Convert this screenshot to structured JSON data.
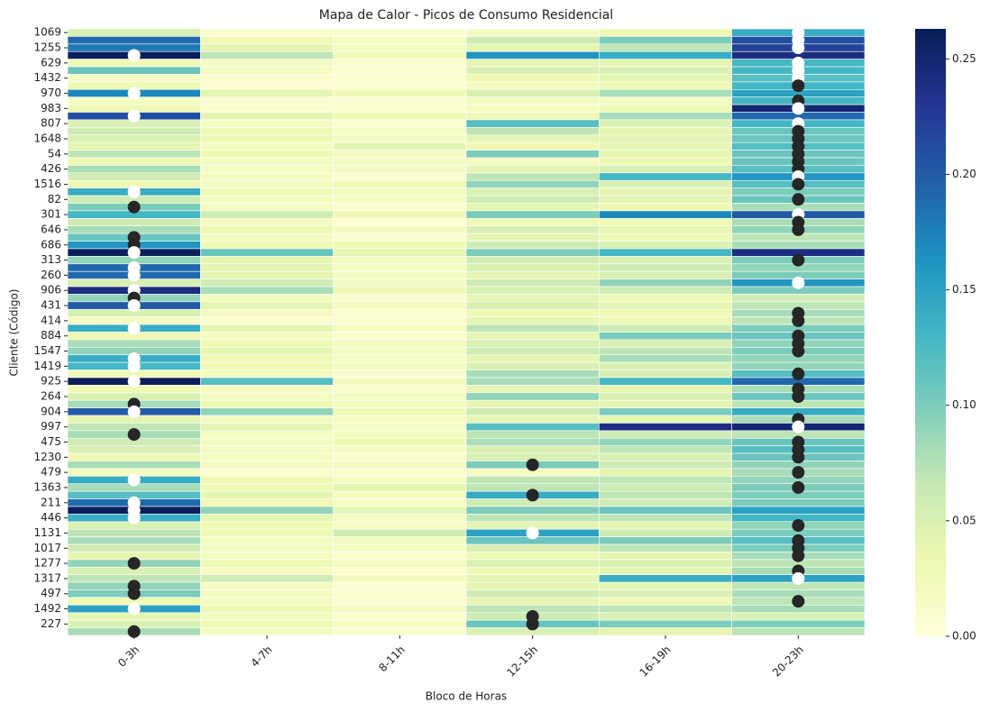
{
  "chart_data": {
    "type": "heatmap",
    "title": "Mapa de Calor - Picos de Consumo Residencial",
    "x_label": "Bloco de Horas",
    "y_label": "Cliente (Código)",
    "categories": [
      "0-3h",
      "4-7h",
      "8-11h",
      "12-15h",
      "16-19h",
      "20-23h"
    ],
    "rows": [
      "1069",
      null,
      "1255",
      null,
      "629",
      null,
      "1432",
      null,
      "970",
      null,
      "983",
      null,
      "807",
      null,
      "1648",
      null,
      "54",
      null,
      "426",
      null,
      "1516",
      null,
      "82",
      null,
      "301",
      null,
      "646",
      null,
      "686",
      null,
      "313",
      null,
      "260",
      null,
      "906",
      null,
      "431",
      null,
      "414",
      null,
      "884",
      null,
      "1547",
      null,
      "1419",
      null,
      "925",
      null,
      "264",
      null,
      "904",
      null,
      "997",
      null,
      "475",
      null,
      "1230",
      null,
      "479",
      null,
      "1363",
      null,
      "211",
      null,
      "446",
      null,
      "1131",
      null,
      "1017",
      null,
      "1277",
      null,
      "1317",
      null,
      "497",
      null,
      "1492",
      null,
      "227",
      null
    ],
    "values": [
      [
        0.05,
        0.01,
        0.01,
        0.02,
        0.03,
        0.14
      ],
      [
        0.19,
        0.03,
        0.02,
        0.06,
        0.1,
        0.21
      ],
      [
        0.18,
        0.04,
        0.02,
        0.04,
        0.07,
        0.22
      ],
      [
        0.26,
        0.07,
        0.03,
        0.16,
        0.14,
        0.24
      ],
      [
        0.03,
        0.02,
        0.01,
        0.04,
        0.04,
        0.13
      ],
      [
        0.11,
        0.02,
        0.01,
        0.05,
        0.05,
        0.13
      ],
      [
        0.02,
        0.01,
        0.01,
        0.03,
        0.04,
        0.12
      ],
      [
        0.03,
        0.01,
        0.01,
        0.02,
        0.03,
        0.13
      ],
      [
        0.17,
        0.04,
        0.03,
        0.05,
        0.08,
        0.15
      ],
      [
        0.02,
        0.01,
        0.01,
        0.02,
        0.02,
        0.13
      ],
      [
        0.03,
        0.01,
        0.01,
        0.02,
        0.03,
        0.25
      ],
      [
        0.21,
        0.04,
        0.03,
        0.03,
        0.08,
        0.19
      ],
      [
        0.05,
        0.02,
        0.01,
        0.12,
        0.05,
        0.13
      ],
      [
        0.06,
        0.03,
        0.02,
        0.07,
        0.04,
        0.11
      ],
      [
        0.05,
        0.03,
        0.02,
        0.04,
        0.04,
        0.11
      ],
      [
        0.04,
        0.02,
        0.04,
        0.03,
        0.04,
        0.12
      ],
      [
        0.07,
        0.03,
        0.02,
        0.1,
        0.04,
        0.11
      ],
      [
        0.03,
        0.02,
        0.02,
        0.02,
        0.03,
        0.11
      ],
      [
        0.08,
        0.02,
        0.02,
        0.04,
        0.05,
        0.12
      ],
      [
        0.06,
        0.02,
        0.01,
        0.07,
        0.13,
        0.16
      ],
      [
        0.03,
        0.02,
        0.03,
        0.09,
        0.05,
        0.12
      ],
      [
        0.14,
        0.03,
        0.02,
        0.05,
        0.04,
        0.1
      ],
      [
        0.06,
        0.02,
        0.02,
        0.06,
        0.04,
        0.11
      ],
      [
        0.1,
        0.02,
        0.01,
        0.04,
        0.03,
        0.08
      ],
      [
        0.13,
        0.06,
        0.03,
        0.1,
        0.17,
        0.2
      ],
      [
        0.06,
        0.02,
        0.01,
        0.03,
        0.03,
        0.08
      ],
      [
        0.08,
        0.03,
        0.02,
        0.05,
        0.04,
        0.09
      ],
      [
        0.11,
        0.02,
        0.01,
        0.04,
        0.03,
        0.07
      ],
      [
        0.16,
        0.03,
        0.03,
        0.06,
        0.05,
        0.08
      ],
      [
        0.26,
        0.11,
        0.04,
        0.1,
        0.13,
        0.24
      ],
      [
        0.09,
        0.04,
        0.02,
        0.06,
        0.05,
        0.1
      ],
      [
        0.19,
        0.04,
        0.02,
        0.05,
        0.06,
        0.09
      ],
      [
        0.19,
        0.04,
        0.02,
        0.04,
        0.05,
        0.1
      ],
      [
        0.05,
        0.06,
        0.02,
        0.06,
        0.09,
        0.16
      ],
      [
        0.24,
        0.08,
        0.03,
        0.05,
        0.06,
        0.1
      ],
      [
        0.09,
        0.02,
        0.01,
        0.04,
        0.03,
        0.06
      ],
      [
        0.2,
        0.04,
        0.02,
        0.05,
        0.04,
        0.07
      ],
      [
        0.05,
        0.02,
        0.01,
        0.03,
        0.03,
        0.08
      ],
      [
        0.02,
        0.01,
        0.01,
        0.04,
        0.03,
        0.07
      ],
      [
        0.14,
        0.04,
        0.02,
        0.07,
        0.06,
        0.1
      ],
      [
        0.03,
        0.02,
        0.01,
        0.04,
        0.1,
        0.11
      ],
      [
        0.08,
        0.03,
        0.02,
        0.05,
        0.05,
        0.09
      ],
      [
        0.09,
        0.04,
        0.02,
        0.06,
        0.07,
        0.1
      ],
      [
        0.14,
        0.03,
        0.02,
        0.04,
        0.08,
        0.09
      ],
      [
        0.13,
        0.03,
        0.02,
        0.05,
        0.05,
        0.09
      ],
      [
        0.03,
        0.02,
        0.01,
        0.08,
        0.05,
        0.12
      ],
      [
        0.26,
        0.12,
        0.02,
        0.08,
        0.13,
        0.19
      ],
      [
        0.03,
        0.02,
        0.01,
        0.04,
        0.04,
        0.08
      ],
      [
        0.05,
        0.02,
        0.02,
        0.09,
        0.05,
        0.11
      ],
      [
        0.08,
        0.03,
        0.02,
        0.04,
        0.04,
        0.07
      ],
      [
        0.2,
        0.09,
        0.03,
        0.06,
        0.1,
        0.14
      ],
      [
        0.04,
        0.02,
        0.02,
        0.04,
        0.04,
        0.08
      ],
      [
        0.07,
        0.04,
        0.02,
        0.12,
        0.24,
        0.25
      ],
      [
        0.08,
        0.02,
        0.02,
        0.07,
        0.06,
        0.07
      ],
      [
        0.06,
        0.02,
        0.03,
        0.08,
        0.09,
        0.11
      ],
      [
        0.05,
        0.02,
        0.02,
        0.05,
        0.07,
        0.12
      ],
      [
        0.03,
        0.02,
        0.01,
        0.05,
        0.05,
        0.11
      ],
      [
        0.08,
        0.02,
        0.02,
        0.1,
        0.06,
        0.09
      ],
      [
        0.02,
        0.01,
        0.01,
        0.02,
        0.04,
        0.08
      ],
      [
        0.14,
        0.03,
        0.02,
        0.07,
        0.07,
        0.09
      ],
      [
        0.08,
        0.03,
        0.04,
        0.07,
        0.06,
        0.1
      ],
      [
        0.12,
        0.04,
        0.02,
        0.14,
        0.07,
        0.1
      ],
      [
        0.19,
        0.03,
        0.02,
        0.06,
        0.06,
        0.1
      ],
      [
        0.26,
        0.09,
        0.04,
        0.1,
        0.11,
        0.15
      ],
      [
        0.14,
        0.04,
        0.02,
        0.07,
        0.07,
        0.13
      ],
      [
        0.05,
        0.03,
        0.02,
        0.04,
        0.04,
        0.09
      ],
      [
        0.07,
        0.03,
        0.06,
        0.15,
        0.06,
        0.1
      ],
      [
        0.08,
        0.02,
        0.02,
        0.11,
        0.1,
        0.12
      ],
      [
        0.06,
        0.02,
        0.02,
        0.05,
        0.07,
        0.1
      ],
      [
        0.04,
        0.02,
        0.01,
        0.03,
        0.04,
        0.08
      ],
      [
        0.09,
        0.03,
        0.02,
        0.05,
        0.05,
        0.07
      ],
      [
        0.05,
        0.02,
        0.01,
        0.03,
        0.04,
        0.08
      ],
      [
        0.07,
        0.06,
        0.02,
        0.04,
        0.14,
        0.15
      ],
      [
        0.09,
        0.02,
        0.01,
        0.04,
        0.04,
        0.07
      ],
      [
        0.1,
        0.02,
        0.01,
        0.06,
        0.05,
        0.08
      ],
      [
        0.03,
        0.02,
        0.01,
        0.04,
        0.03,
        0.07
      ],
      [
        0.15,
        0.03,
        0.02,
        0.07,
        0.07,
        0.08
      ],
      [
        0.04,
        0.02,
        0.01,
        0.06,
        0.05,
        0.05
      ],
      [
        0.05,
        0.03,
        0.02,
        0.11,
        0.1,
        0.1
      ],
      [
        0.08,
        0.02,
        0.01,
        0.05,
        0.04,
        0.07
      ]
    ],
    "colormap": [
      "#ffffd9",
      "#edf8b1",
      "#c7e9b4",
      "#7fcdbb",
      "#41b6c4",
      "#1d91c0",
      "#225ea8",
      "#253494",
      "#081d58"
    ],
    "clim": [
      0,
      0.263
    ],
    "cticks": [
      {
        "value": 0,
        "label": "0.00"
      },
      {
        "value": 0.05,
        "label": "0.05"
      },
      {
        "value": 0.1,
        "label": "0.10"
      },
      {
        "value": 0.15,
        "label": "0.15"
      },
      {
        "value": 0.2,
        "label": "0.20"
      },
      {
        "value": 0.25,
        "label": "0.25"
      }
    ],
    "peaks": {
      "columns": [
        5,
        5,
        5,
        0,
        5,
        5,
        5,
        5,
        0,
        5,
        5,
        0,
        5,
        5,
        5,
        5,
        5,
        5,
        5,
        5,
        5,
        0,
        5,
        0,
        5,
        5,
        5,
        0,
        0,
        0,
        5,
        0,
        0,
        5,
        0,
        0,
        0,
        5,
        5,
        0,
        5,
        5,
        5,
        0,
        0,
        5,
        0,
        5,
        5,
        0,
        0,
        5,
        5,
        0,
        5,
        5,
        5,
        3,
        5,
        0,
        5,
        3,
        0,
        0,
        0,
        5,
        3,
        5,
        5,
        5,
        0,
        5,
        5,
        0,
        0,
        5,
        0,
        3,
        3,
        0
      ],
      "colors": [
        "#ffffff",
        "#ffffff",
        "#ffffff",
        "#ffffff",
        "#ffffff",
        "#ffffff",
        "#ffffff",
        "#262626",
        "#ffffff",
        "#262626",
        "#ffffff",
        "#ffffff",
        "#ffffff",
        "#262626",
        "#262626",
        "#262626",
        "#262626",
        "#262626",
        "#262626",
        "#ffffff",
        "#262626",
        "#ffffff",
        "#262626",
        "#262626",
        "#ffffff",
        "#262626",
        "#262626",
        "#262626",
        "#262626",
        "#ffffff",
        "#262626",
        "#ffffff",
        "#ffffff",
        "#ffffff",
        "#ffffff",
        "#262626",
        "#ffffff",
        "#262626",
        "#262626",
        "#ffffff",
        "#262626",
        "#262626",
        "#262626",
        "#ffffff",
        "#ffffff",
        "#262626",
        "#ffffff",
        "#262626",
        "#262626",
        "#262626",
        "#ffffff",
        "#262626",
        "#ffffff",
        "#262626",
        "#262626",
        "#262626",
        "#262626",
        "#262626",
        "#262626",
        "#ffffff",
        "#262626",
        "#262626",
        "#ffffff",
        "#ffffff",
        "#ffffff",
        "#262626",
        "#ffffff",
        "#262626",
        "#262626",
        "#262626",
        "#262626",
        "#262626",
        "#ffffff",
        "#262626",
        "#262626",
        "#262626",
        "#ffffff",
        "#262626",
        "#262626",
        "#262626"
      ]
    }
  }
}
